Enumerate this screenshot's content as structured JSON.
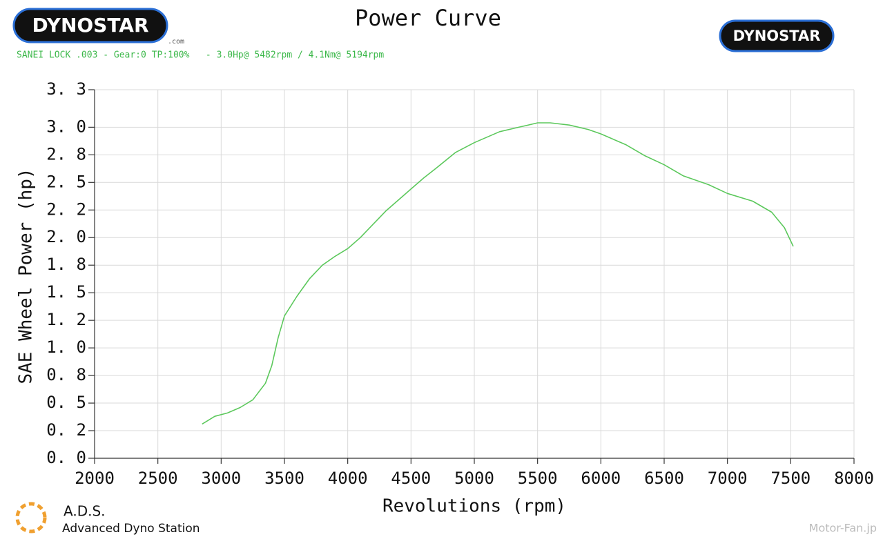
{
  "chart_data": {
    "type": "line",
    "title": "Power Curve",
    "subtitle": "SANEI LOCK .003 - Gear:0 TP:100%   - 3.0Hp@ 5482rpm / 4.1Nm@ 5194rpm",
    "x_label": "Revolutions (rpm)",
    "y_label": "SAE Wheel Power (hp)",
    "grid": true,
    "xlim": [
      2000,
      8000
    ],
    "xticks": [
      2000,
      2500,
      3000,
      3500,
      4000,
      4500,
      5000,
      5500,
      6000,
      6500,
      7000,
      7500,
      8000
    ],
    "ylim": [
      0,
      3.34
    ],
    "yticks": [
      {
        "value": 0,
        "label": "0. 0"
      },
      {
        "value": 0.25,
        "label": "0. 2"
      },
      {
        "value": 0.5,
        "label": "0. 5"
      },
      {
        "value": 0.75,
        "label": "0. 8"
      },
      {
        "value": 1.0,
        "label": "1. 0"
      },
      {
        "value": 1.25,
        "label": "1. 2"
      },
      {
        "value": 1.5,
        "label": "1. 5"
      },
      {
        "value": 1.75,
        "label": "1. 8"
      },
      {
        "value": 2.0,
        "label": "2. 0"
      },
      {
        "value": 2.25,
        "label": "2. 2"
      },
      {
        "value": 2.5,
        "label": "2. 5"
      },
      {
        "value": 2.75,
        "label": "2. 8"
      },
      {
        "value": 3.0,
        "label": "3. 0"
      },
      {
        "value": 3.34,
        "label": "3. 3"
      }
    ],
    "x": [
      2850,
      2950,
      3050,
      3150,
      3250,
      3350,
      3400,
      3450,
      3500,
      3600,
      3700,
      3800,
      3900,
      4000,
      4100,
      4200,
      4300,
      4400,
      4500,
      4600,
      4700,
      4850,
      5000,
      5200,
      5350,
      5500,
      5600,
      5750,
      5900,
      6000,
      6200,
      6350,
      6500,
      6650,
      6850,
      7000,
      7200,
      7350,
      7450,
      7520
    ],
    "series": [
      {
        "name": "SAE Wheel Power",
        "color": "#5cc85c",
        "values": [
          0.31,
          0.38,
          0.41,
          0.46,
          0.53,
          0.68,
          0.84,
          1.09,
          1.29,
          1.47,
          1.63,
          1.75,
          1.83,
          1.9,
          2.0,
          2.12,
          2.24,
          2.34,
          2.44,
          2.54,
          2.63,
          2.77,
          2.86,
          2.96,
          3.0,
          3.04,
          3.04,
          3.02,
          2.98,
          2.94,
          2.84,
          2.74,
          2.66,
          2.56,
          2.48,
          2.4,
          2.33,
          2.23,
          2.09,
          1.92
        ]
      }
    ]
  },
  "branding": {
    "logo_left": "DYNOSTAR",
    "logo_left_suffix": ".com",
    "logo_right": "DYNOSTAR",
    "ads_short": "A.D.S.",
    "ads_full": "Advanced Dyno Station",
    "watermark": "Motor-Fan.jp"
  }
}
